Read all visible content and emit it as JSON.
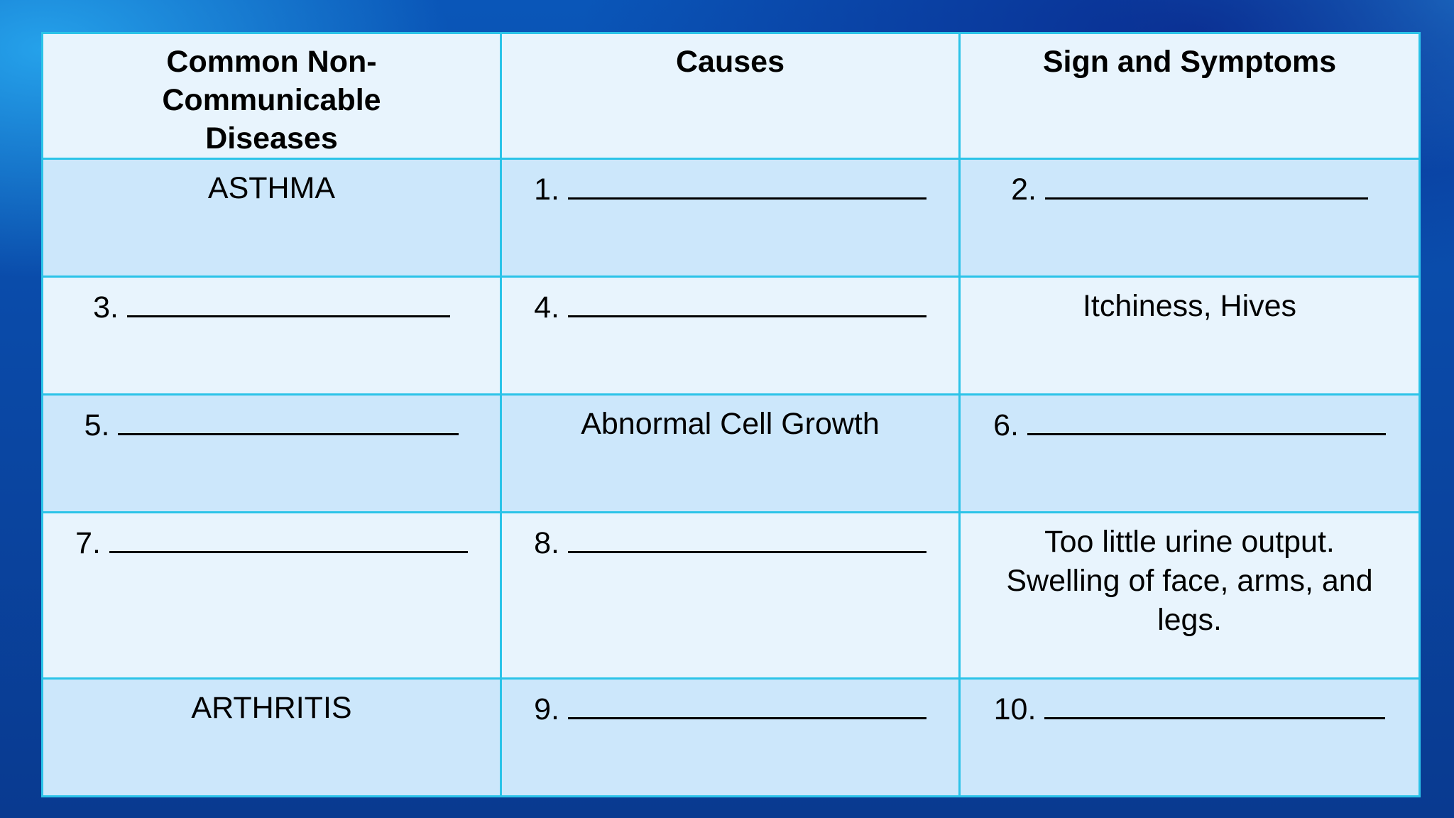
{
  "table": {
    "headers": [
      "Common Non-Communicable Diseases",
      "Causes",
      "Sign and Symptoms"
    ],
    "rows": [
      {
        "disease": "ASTHMA",
        "cause_num": "1.",
        "symptom_num": "2."
      },
      {
        "disease_num": "3.",
        "cause_num": "4.",
        "symptom": "Itchiness, Hives"
      },
      {
        "disease_num": "5.",
        "cause": "Abnormal Cell Growth",
        "symptom_num": "6."
      },
      {
        "disease_num": "7.",
        "cause_num": "8.",
        "symptom": "Too little urine output. Swelling of face, arms, and legs."
      },
      {
        "disease": "ARTHRITIS",
        "cause_num": "9.",
        "symptom_num": "10."
      }
    ]
  },
  "colors": {
    "border": "#2bc3e8",
    "header_bg": "#e8f4fd",
    "row_light_bg": "#e8f4fd",
    "row_dark_bg": "#cce7fb",
    "background": "#0a4aa8"
  }
}
